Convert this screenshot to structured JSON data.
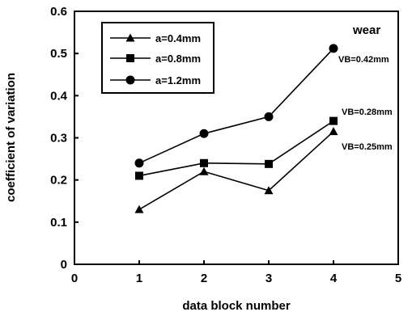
{
  "chart_data": {
    "type": "line",
    "x": [
      1,
      2,
      3,
      4
    ],
    "xlim": [
      0,
      5
    ],
    "ylim": [
      0,
      0.6
    ],
    "xticks": [
      "0",
      "1",
      "2",
      "3",
      "4",
      "5"
    ],
    "yticks": [
      "0",
      "0.1",
      "0.2",
      "0.3",
      "0.4",
      "0.5",
      "0.6"
    ],
    "xlabel": "data  block  number",
    "ylabel": "coefficient  of  variation",
    "grid": false,
    "legend_position": "top-left",
    "series": [
      {
        "name": "a=0.4mm",
        "marker": "triangle",
        "values": [
          0.13,
          0.22,
          0.175,
          0.315
        ]
      },
      {
        "name": "a=0.8mm",
        "marker": "square",
        "values": [
          0.21,
          0.24,
          0.238,
          0.34
        ]
      },
      {
        "name": "a=1.2mm",
        "marker": "circle",
        "values": [
          0.24,
          0.31,
          0.35,
          0.512
        ]
      }
    ],
    "annotations": [
      {
        "text": "wear",
        "kind": "title-right"
      },
      {
        "text": "VB=0.42mm",
        "near_series": 2
      },
      {
        "text": "VB=0.28mm",
        "near_series": 1
      },
      {
        "text": "VB=0.25mm",
        "near_series": 0
      }
    ]
  }
}
